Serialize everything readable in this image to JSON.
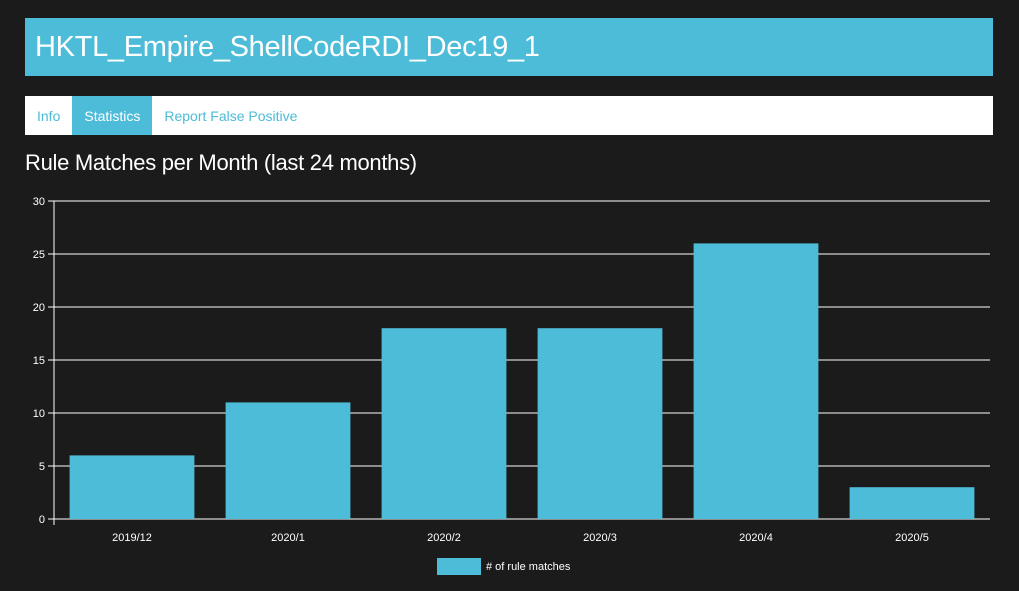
{
  "rule": {
    "title": "HKTL_Empire_ShellCodeRDI_Dec19_1"
  },
  "tabs": [
    {
      "label": "Info",
      "active": false
    },
    {
      "label": "Statistics",
      "active": true
    },
    {
      "label": "Report False Positive",
      "active": false
    }
  ],
  "colors": {
    "accent": "#4cbcd8",
    "background": "#1b1b1b",
    "grid": "#ffffff"
  },
  "chart_data": {
    "type": "bar",
    "title": "Rule Matches per Month (last 24 months)",
    "categories": [
      "2019/12",
      "2020/1",
      "2020/2",
      "2020/3",
      "2020/4",
      "2020/5"
    ],
    "series": [
      {
        "name": "# of rule matches",
        "values": [
          6,
          11,
          18,
          18,
          26,
          3
        ],
        "color": "#4cbcd8"
      }
    ],
    "ylim": [
      0,
      30
    ],
    "yticks": [
      0,
      5,
      10,
      15,
      20,
      25,
      30
    ],
    "grid": true,
    "legend": "bottom"
  }
}
